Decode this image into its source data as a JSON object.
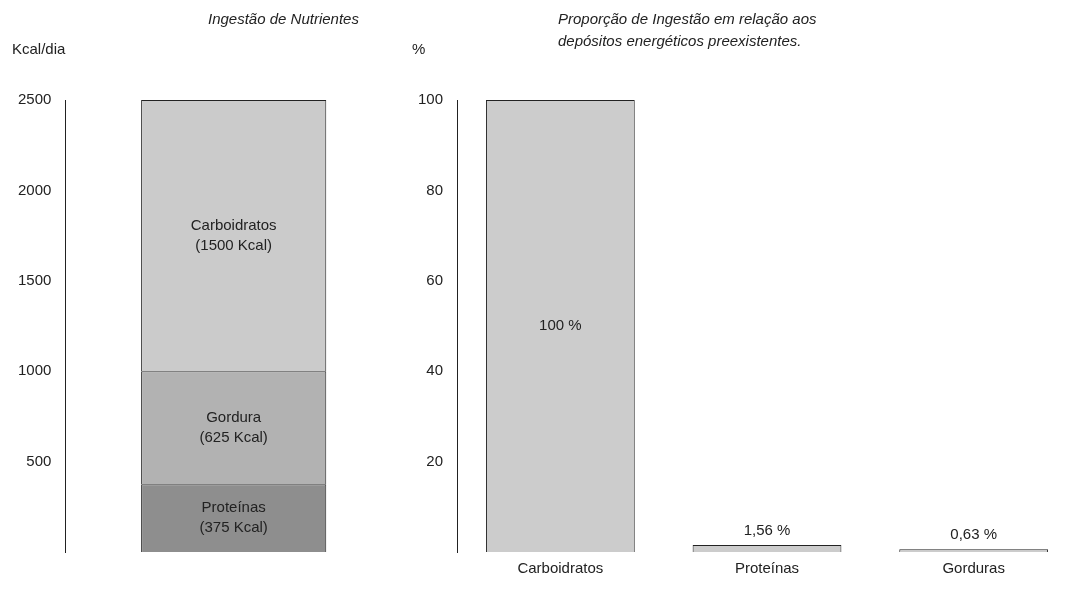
{
  "chart_data": [
    {
      "type": "bar",
      "title": "Ingestão de Nutrientes",
      "ylabel": "Kcal/dia",
      "categories": [
        null
      ],
      "stacked": true,
      "grid": false,
      "ylim": [
        0,
        2500
      ],
      "yticks": [
        500,
        1000,
        1500,
        2000,
        2500
      ],
      "series": [
        {
          "name": "Proteínas",
          "color": "#8e8e8e",
          "values": [
            375
          ],
          "value_labels": [
            "(375 Kcal)"
          ]
        },
        {
          "name": "Gordura",
          "color": "#b2b2b2",
          "values": [
            625
          ],
          "value_labels": [
            "(625 Kcal)"
          ]
        },
        {
          "name": "Carboidratos",
          "color": "#cbcbcb",
          "values": [
            1500
          ],
          "value_labels": [
            "(1500 Kcal)"
          ]
        }
      ]
    },
    {
      "type": "bar",
      "title": "Proporção de Ingestão em relação aos depósitos energéticos preexistentes.",
      "ylabel": "%",
      "categories": [
        "Carboidratos",
        "Proteínas",
        "Gorduras"
      ],
      "values": [
        100,
        1.56,
        0.63
      ],
      "value_labels": [
        "100 %",
        "1,56 %",
        "0,63 %"
      ],
      "color": "#cccccc",
      "grid": false,
      "ylim": [
        0,
        100
      ],
      "yticks": [
        20,
        40,
        60,
        80,
        100
      ]
    }
  ]
}
